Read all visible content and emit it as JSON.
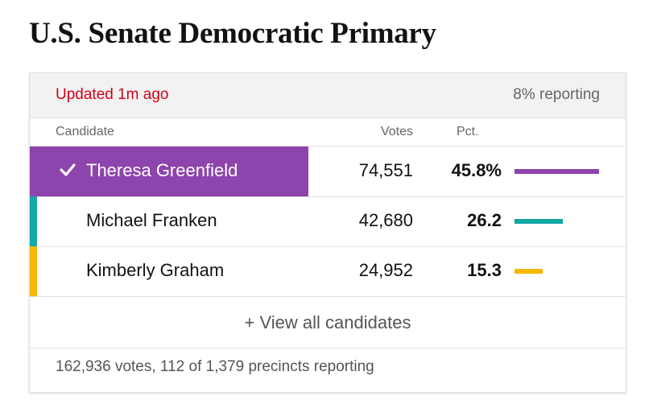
{
  "title": "U.S. Senate Democratic Primary",
  "header": {
    "updated": "Updated 1m ago",
    "reporting": "8% reporting"
  },
  "columns": {
    "candidate": "Candidate",
    "votes": "Votes",
    "pct": "Pct."
  },
  "candidates": [
    {
      "name": "Theresa Greenfield",
      "votes": "74,551",
      "pct": "45.8%",
      "pct_value": 45.8,
      "color": "#8e44ad",
      "winner": true
    },
    {
      "name": "Michael Franken",
      "votes": "42,680",
      "pct": "26.2",
      "pct_value": 26.2,
      "color": "#14a7a5",
      "winner": false
    },
    {
      "name": "Kimberly Graham",
      "votes": "24,952",
      "pct": "15.3",
      "pct_value": 15.3,
      "color": "#f5b800",
      "winner": false
    }
  ],
  "view_all_label": "+ View all candidates",
  "footer": "162,936 votes, 112 of 1,379 precincts reporting",
  "icons": {
    "winner": "checkmark-icon"
  }
}
